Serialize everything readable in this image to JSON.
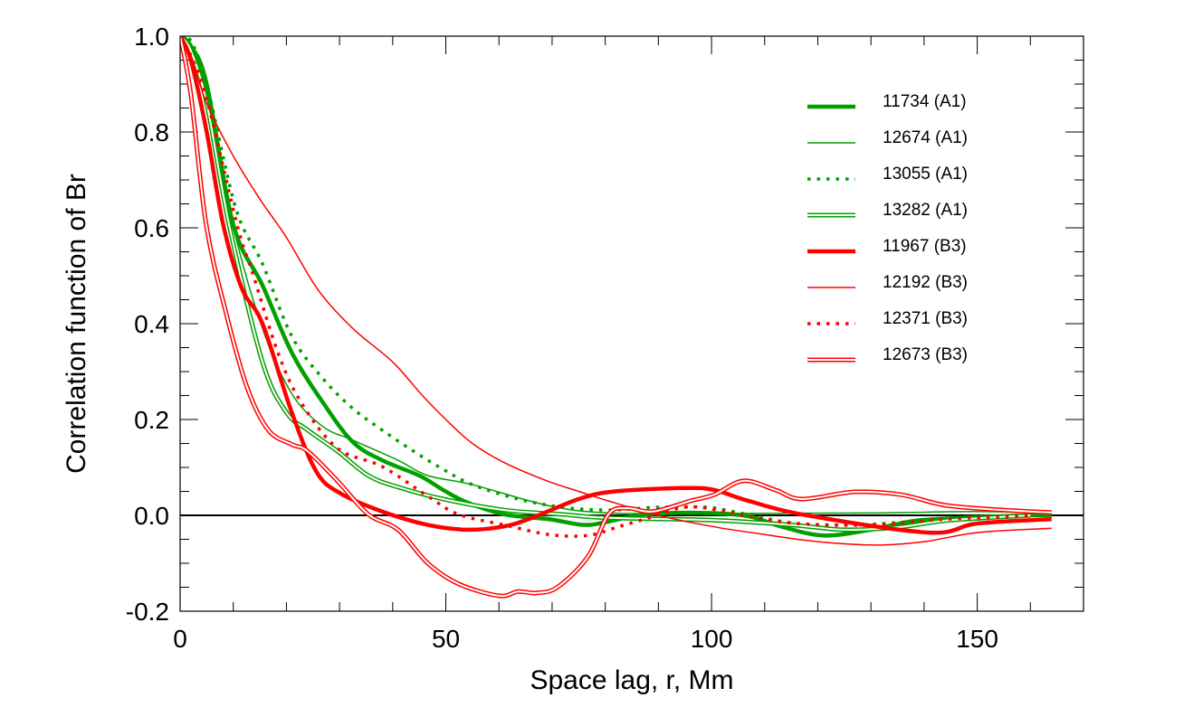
{
  "chart_data": {
    "type": "line",
    "title": "",
    "xlabel": "Space lag, r, Mm",
    "ylabel": "Correlation function of Br",
    "xlim": [
      0,
      170
    ],
    "ylim": [
      -0.2,
      1.0
    ],
    "xticks": [
      0,
      50,
      100,
      150
    ],
    "xtick_labels": [
      "0",
      "50",
      "100",
      "150"
    ],
    "yticks": [
      -0.2,
      0.0,
      0.2,
      0.4,
      0.6,
      0.8,
      1.0
    ],
    "ytick_labels": [
      "-0.2",
      "0.0",
      "0.2",
      "0.4",
      "0.6",
      "0.8",
      "1.0"
    ],
    "grid": false,
    "zero_line": true,
    "legend_position": "top-right",
    "colors": {
      "A1": "#00a000",
      "B3": "#ff0000",
      "axis": "#000000"
    },
    "series": [
      {
        "name": "11734 (A1)",
        "color": "#00a000",
        "style": "thick",
        "points": [
          [
            0,
            1
          ],
          [
            2,
            0.98
          ],
          [
            5,
            0.9
          ],
          [
            10,
            0.607
          ],
          [
            15.5,
            0.48
          ],
          [
            21,
            0.34
          ],
          [
            26.9,
            0.235
          ],
          [
            32.5,
            0.153
          ],
          [
            38,
            0.115
          ],
          [
            45,
            0.083
          ],
          [
            49.5,
            0.053
          ],
          [
            54,
            0.027
          ],
          [
            61,
            0.002
          ],
          [
            69.4,
            -0.008
          ],
          [
            76,
            -0.02
          ],
          [
            80.6,
            -0.013
          ],
          [
            87.4,
            0.002
          ],
          [
            98.8,
            0.005
          ],
          [
            107,
            -0.002
          ],
          [
            113,
            -0.023
          ],
          [
            121,
            -0.042
          ],
          [
            130,
            -0.03
          ],
          [
            138.5,
            -0.011
          ],
          [
            150,
            -0.004
          ],
          [
            160,
            0
          ],
          [
            164,
            0
          ]
        ]
      },
      {
        "name": "12674 (A1)",
        "color": "#00a000",
        "style": "thin",
        "points": [
          [
            0,
            1
          ],
          [
            2,
            0.98
          ],
          [
            5,
            0.88
          ],
          [
            9.9,
            0.607
          ],
          [
            15.5,
            0.39
          ],
          [
            21,
            0.254
          ],
          [
            26.9,
            0.185
          ],
          [
            32.5,
            0.157
          ],
          [
            41,
            0.115
          ],
          [
            46.6,
            0.083
          ],
          [
            55,
            0.064
          ],
          [
            69.4,
            0.02
          ],
          [
            80.6,
            0.005
          ],
          [
            100,
            0.004
          ],
          [
            130,
            0.005
          ],
          [
            150,
            0.008
          ],
          [
            164,
            0.004
          ]
        ]
      },
      {
        "name": "13055 (A1)",
        "color": "#00a000",
        "style": "dotted",
        "points": [
          [
            0,
            1
          ],
          [
            2,
            0.99
          ],
          [
            5,
            0.9
          ],
          [
            10.5,
            0.64
          ],
          [
            15.5,
            0.525
          ],
          [
            21,
            0.374
          ],
          [
            26.9,
            0.285
          ],
          [
            32.5,
            0.223
          ],
          [
            38,
            0.178
          ],
          [
            43.9,
            0.134
          ],
          [
            49.5,
            0.096
          ],
          [
            55,
            0.064
          ],
          [
            63.6,
            0.034
          ],
          [
            72,
            0.017
          ],
          [
            80.6,
            0.011
          ],
          [
            90,
            0.017
          ],
          [
            99,
            0.017
          ],
          [
            104,
            0.008
          ],
          [
            116,
            -0.017
          ],
          [
            127,
            -0.02
          ],
          [
            138,
            -0.013
          ],
          [
            150,
            -0.008
          ],
          [
            160,
            0
          ]
        ]
      },
      {
        "name": "13282 (A1)",
        "color": "#00a000",
        "style": "double",
        "points": [
          [
            0,
            1
          ],
          [
            2,
            0.97
          ],
          [
            5,
            0.86
          ],
          [
            9.2,
            0.607
          ],
          [
            15.5,
            0.32
          ],
          [
            20,
            0.215
          ],
          [
            24,
            0.178
          ],
          [
            29.6,
            0.134
          ],
          [
            35.4,
            0.083
          ],
          [
            41,
            0.059
          ],
          [
            49.5,
            0.034
          ],
          [
            61,
            0.011
          ],
          [
            72,
            0.002
          ],
          [
            80,
            -0.005
          ],
          [
            100,
            -0.01
          ],
          [
            115,
            -0.02
          ],
          [
            125,
            -0.03
          ],
          [
            135,
            -0.025
          ],
          [
            145,
            -0.01
          ],
          [
            160,
            0
          ]
        ]
      },
      {
        "name": "11967 (B3)",
        "color": "#ff0000",
        "style": "thick",
        "points": [
          [
            0,
            1
          ],
          [
            2,
            0.95
          ],
          [
            5,
            0.8
          ],
          [
            8.1,
            0.607
          ],
          [
            11.6,
            0.474
          ],
          [
            15.5,
            0.4
          ],
          [
            21,
            0.215
          ],
          [
            25.7,
            0.09
          ],
          [
            30.3,
            0.045
          ],
          [
            38,
            0.008
          ],
          [
            46.6,
            -0.02
          ],
          [
            54,
            -0.03
          ],
          [
            61,
            -0.023
          ],
          [
            66.5,
            -0.004
          ],
          [
            75,
            0.034
          ],
          [
            81.8,
            0.05
          ],
          [
            95,
            0.057
          ],
          [
            100.5,
            0.053
          ],
          [
            107,
            0.03
          ],
          [
            118,
            0
          ],
          [
            141,
            -0.036
          ],
          [
            150,
            -0.017
          ],
          [
            164,
            -0.008
          ]
        ]
      },
      {
        "name": "12192 (B3)",
        "color": "#ff0000",
        "style": "thin",
        "points": [
          [
            0,
            1
          ],
          [
            2,
            0.96
          ],
          [
            5,
            0.86
          ],
          [
            10,
            0.75
          ],
          [
            15,
            0.66
          ],
          [
            20,
            0.58
          ],
          [
            26,
            0.47
          ],
          [
            32.5,
            0.39
          ],
          [
            40,
            0.32
          ],
          [
            45.6,
            0.25
          ],
          [
            50,
            0.2
          ],
          [
            55,
            0.15
          ],
          [
            61,
            0.11
          ],
          [
            69,
            0.072
          ],
          [
            75,
            0.05
          ],
          [
            80.6,
            0.03
          ],
          [
            90,
            0.0
          ],
          [
            100,
            -0.023
          ],
          [
            110,
            -0.04
          ],
          [
            120,
            -0.055
          ],
          [
            131,
            -0.062
          ],
          [
            140,
            -0.055
          ],
          [
            150,
            -0.036
          ],
          [
            164,
            -0.027
          ]
        ]
      },
      {
        "name": "12371 (B3)",
        "color": "#ff0000",
        "style": "dotted",
        "points": [
          [
            0,
            1
          ],
          [
            2,
            0.96
          ],
          [
            5,
            0.87
          ],
          [
            10.7,
            0.607
          ],
          [
            13.8,
            0.5
          ],
          [
            18.4,
            0.34
          ],
          [
            22.8,
            0.235
          ],
          [
            29.6,
            0.14
          ],
          [
            38,
            0.102
          ],
          [
            46.6,
            0.04
          ],
          [
            52.4,
            0.002
          ],
          [
            61,
            -0.02
          ],
          [
            69.4,
            -0.04
          ],
          [
            76.7,
            -0.042
          ],
          [
            82.7,
            -0.023
          ],
          [
            87.4,
            -0.008
          ],
          [
            95,
            0.017
          ],
          [
            101.7,
            0.01
          ],
          [
            107,
            -0.002
          ],
          [
            116,
            -0.017
          ],
          [
            130,
            -0.02
          ],
          [
            144,
            -0.008
          ],
          [
            155,
            -0.003
          ],
          [
            160,
            0
          ]
        ]
      },
      {
        "name": "12673 (B3)",
        "color": "#ff0000",
        "style": "double",
        "points": [
          [
            0,
            1
          ],
          [
            2,
            0.88
          ],
          [
            4.9,
            0.607
          ],
          [
            8.7,
            0.42
          ],
          [
            12.6,
            0.267
          ],
          [
            16.6,
            0.178
          ],
          [
            21,
            0.148
          ],
          [
            24,
            0.134
          ],
          [
            29.6,
            0.072
          ],
          [
            35.4,
            0.002
          ],
          [
            41,
            -0.03
          ],
          [
            46.6,
            -0.1
          ],
          [
            52.4,
            -0.143
          ],
          [
            60,
            -0.168
          ],
          [
            63.6,
            -0.159
          ],
          [
            67,
            -0.162
          ],
          [
            71,
            -0.15
          ],
          [
            76.7,
            -0.087
          ],
          [
            80.6,
            0.002
          ],
          [
            84,
            0.015
          ],
          [
            89,
            0.008
          ],
          [
            96,
            0.03
          ],
          [
            100.5,
            0.043
          ],
          [
            106,
            0.072
          ],
          [
            112,
            0.053
          ],
          [
            117,
            0.034
          ],
          [
            127,
            0.049
          ],
          [
            135.7,
            0.043
          ],
          [
            144,
            0.021
          ],
          [
            155,
            0.011
          ],
          [
            164,
            0.006
          ]
        ]
      }
    ]
  }
}
